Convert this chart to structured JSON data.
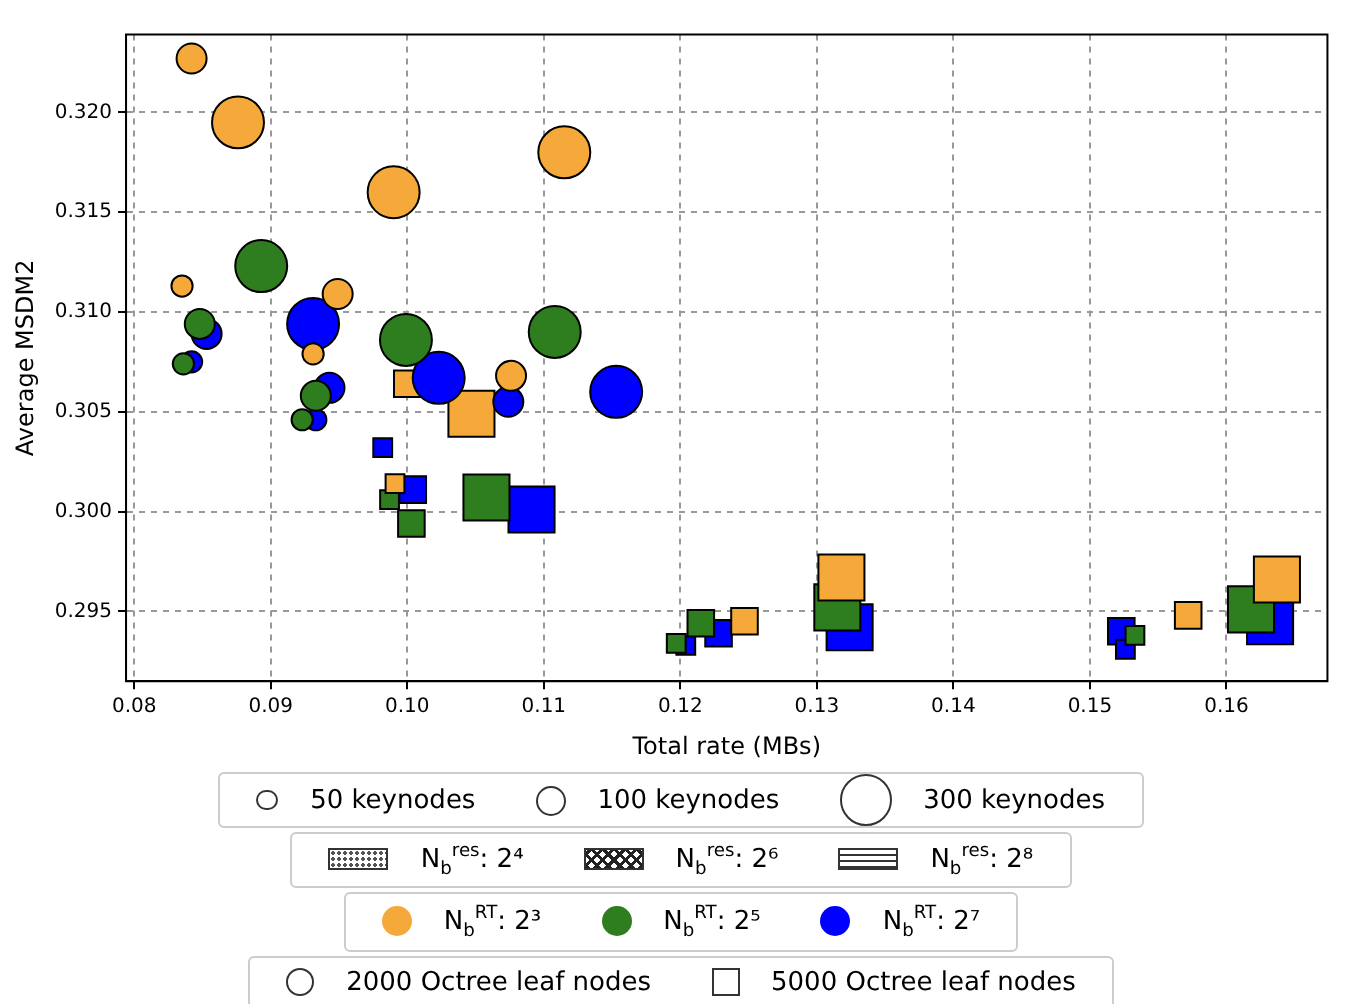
{
  "chart_data": {
    "type": "bubble",
    "xlabel": "Total rate (MBs)",
    "ylabel": "Average MSDM2",
    "xlim": [
      0.0794,
      0.1674
    ],
    "xticks": [
      {
        "value": 0.08,
        "label": "0.08"
      },
      {
        "value": 0.09,
        "label": "0.09"
      },
      {
        "value": 0.1,
        "label": "0.10"
      },
      {
        "value": 0.11,
        "label": "0.11"
      },
      {
        "value": 0.12,
        "label": "0.12"
      },
      {
        "value": 0.13,
        "label": "0.13"
      },
      {
        "value": 0.14,
        "label": "0.14"
      },
      {
        "value": 0.15,
        "label": "0.15"
      },
      {
        "value": 0.16,
        "label": "0.16"
      }
    ],
    "ylim": [
      0.2915,
      0.3239
    ],
    "yticks": [
      {
        "value": 0.295,
        "label": "0.295"
      },
      {
        "value": 0.3,
        "label": "0.300"
      },
      {
        "value": 0.305,
        "label": "0.305"
      },
      {
        "value": 0.31,
        "label": "0.310"
      },
      {
        "value": 0.315,
        "label": "0.315"
      },
      {
        "value": 0.32,
        "label": "0.320"
      }
    ],
    "grid": true,
    "legend": "bottom",
    "size_legend": [
      {
        "value": 50,
        "label": "50 keynodes"
      },
      {
        "value": 100,
        "label": "100 keynodes"
      },
      {
        "value": 300,
        "label": "300 keynodes"
      }
    ],
    "annotations": [
      "N$_{b}$$^{res}$: 2⁴",
      "N$_{b}$$^{res}$: 2⁶",
      "N$_{b}$$^{res}$: 2⁸",
      "2000 Octree leaf nodes",
      "5000 Octree leaf nodes"
    ],
    "series": [
      {
        "name": "N$_{b}$$^{RT}$: 2³",
        "color": "#f5a93a",
        "marker": "circle",
        "x": [
          0.0842,
          0.0876,
          0.099,
          0.1115,
          0.0835,
          0.0949,
          0.0931,
          0.1076
        ],
        "values": [
          0.3227,
          0.3195,
          0.316,
          0.318,
          0.3113,
          0.3109,
          0.3079,
          0.3068
        ],
        "sizes": [
          100,
          300,
          300,
          300,
          50,
          100,
          50,
          100
        ]
      },
      {
        "name": "N$_{b}$$^{RT}$: 2⁵",
        "color": "#2e7d1e",
        "marker": "circle",
        "x": [
          0.0893,
          0.0848,
          0.0836,
          0.0999,
          0.1108,
          0.0933,
          0.0923
        ],
        "values": [
          0.3123,
          0.3094,
          0.3074,
          0.3086,
          0.309,
          0.3058,
          0.3046
        ],
        "sizes": [
          300,
          100,
          50,
          300,
          300,
          100,
          50
        ]
      },
      {
        "name": "N$_{b}$$^{RT}$: 2⁷",
        "color": "#0000ff",
        "marker": "circle",
        "x": [
          0.0853,
          0.0842,
          0.0931,
          0.0943,
          0.0933,
          0.1023,
          0.1074,
          0.1153
        ],
        "values": [
          0.3089,
          0.3075,
          0.3094,
          0.3062,
          0.3046,
          0.3067,
          0.3055,
          0.306
        ],
        "sizes": [
          100,
          50,
          300,
          100,
          50,
          300,
          100,
          300
        ]
      },
      {
        "color": "#f5a93a",
        "marker": "square",
        "x": [
          0.1,
          0.1047,
          0.0991,
          0.1247,
          0.1318,
          0.1572,
          0.1637
        ],
        "values": [
          0.3064,
          0.3049,
          0.3014,
          0.2945,
          0.2967,
          0.2948,
          0.2966
        ],
        "sizes": [
          100,
          300,
          50,
          100,
          300,
          100,
          300
        ]
      },
      {
        "color": "#2e7d1e",
        "marker": "square",
        "x": [
          0.0987,
          0.1003,
          0.1058,
          0.1215,
          0.1197,
          0.1315,
          0.1533,
          0.1618
        ],
        "values": [
          0.3006,
          0.2994,
          0.3007,
          0.2944,
          0.2934,
          0.2952,
          0.2938,
          0.2951
        ],
        "sizes": [
          50,
          100,
          300,
          100,
          50,
          300,
          50,
          300
        ]
      },
      {
        "color": "#0000ff",
        "marker": "square",
        "x": [
          0.0982,
          0.1004,
          0.1091,
          0.1204,
          0.1228,
          0.1324,
          0.1523,
          0.1526,
          0.1632
        ],
        "values": [
          0.3032,
          0.3011,
          0.3001,
          0.2933,
          0.2939,
          0.2942,
          0.294,
          0.2931,
          0.2945
        ],
        "sizes": [
          50,
          100,
          300,
          50,
          100,
          300,
          100,
          50,
          300
        ]
      }
    ]
  }
}
